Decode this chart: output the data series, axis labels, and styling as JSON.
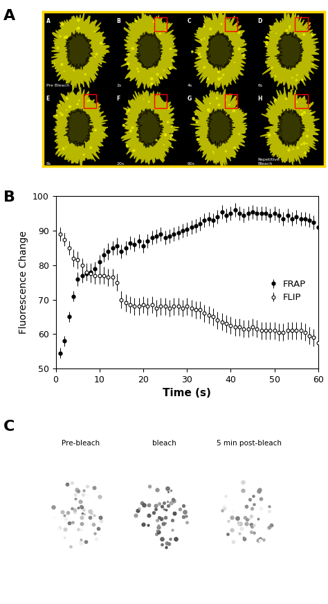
{
  "panel_B": {
    "xlabel": "Time (s)",
    "ylabel": "Fluorescence Change",
    "xlim": [
      0,
      60
    ],
    "ylim": [
      50,
      100
    ],
    "xticks": [
      0,
      10,
      20,
      30,
      40,
      50,
      60
    ],
    "yticks": [
      50,
      60,
      70,
      80,
      90,
      100
    ],
    "legend_frap": "FRAP",
    "legend_flip": "FLIP",
    "frap_x": [
      1,
      2,
      3,
      4,
      5,
      6,
      7,
      8,
      9,
      10,
      11,
      12,
      13,
      14,
      15,
      16,
      17,
      18,
      19,
      20,
      21,
      22,
      23,
      24,
      25,
      26,
      27,
      28,
      29,
      30,
      31,
      32,
      33,
      34,
      35,
      36,
      37,
      38,
      39,
      40,
      41,
      42,
      43,
      44,
      45,
      46,
      47,
      48,
      49,
      50,
      51,
      52,
      53,
      54,
      55,
      56,
      57,
      58,
      59,
      60
    ],
    "frap_y": [
      54.5,
      58.0,
      65.0,
      71.0,
      76.0,
      77.0,
      77.5,
      78.0,
      79.0,
      81.0,
      83.0,
      84.0,
      85.0,
      85.5,
      84.0,
      85.0,
      86.5,
      86.0,
      87.0,
      85.5,
      87.0,
      88.0,
      88.5,
      89.0,
      88.0,
      88.5,
      89.0,
      89.5,
      90.0,
      90.5,
      91.0,
      91.5,
      92.0,
      93.0,
      93.5,
      93.0,
      94.0,
      95.5,
      94.5,
      95.0,
      96.0,
      95.0,
      94.5,
      95.0,
      95.5,
      95.0,
      95.0,
      95.0,
      94.5,
      95.0,
      94.5,
      93.5,
      94.5,
      93.5,
      94.0,
      93.5,
      93.5,
      93.0,
      92.5,
      91.0
    ],
    "frap_yerr": [
      1.5,
      1.5,
      1.5,
      1.5,
      2.0,
      2.0,
      2.0,
      2.5,
      2.0,
      2.0,
      2.0,
      2.5,
      2.0,
      2.5,
      2.0,
      2.0,
      2.0,
      2.0,
      2.0,
      2.0,
      2.0,
      2.0,
      2.0,
      2.0,
      2.0,
      2.0,
      2.0,
      2.0,
      2.0,
      2.0,
      2.0,
      2.0,
      2.0,
      2.0,
      2.0,
      2.0,
      2.0,
      2.0,
      2.0,
      2.0,
      2.0,
      2.0,
      2.0,
      2.0,
      2.0,
      2.0,
      2.0,
      2.0,
      2.0,
      2.0,
      2.0,
      2.0,
      2.0,
      2.0,
      2.0,
      2.0,
      2.0,
      2.0,
      2.0,
      2.5
    ],
    "flip_x": [
      1,
      2,
      3,
      4,
      5,
      6,
      7,
      8,
      9,
      10,
      11,
      12,
      13,
      14,
      15,
      16,
      17,
      18,
      19,
      20,
      21,
      22,
      23,
      24,
      25,
      26,
      27,
      28,
      29,
      30,
      31,
      32,
      33,
      34,
      35,
      36,
      37,
      38,
      39,
      40,
      41,
      42,
      43,
      44,
      45,
      46,
      47,
      48,
      49,
      50,
      51,
      52,
      53,
      54,
      55,
      56,
      57,
      58,
      59,
      60
    ],
    "flip_y": [
      89.0,
      87.5,
      85.0,
      82.0,
      81.5,
      80.0,
      78.0,
      77.5,
      77.0,
      77.0,
      77.0,
      76.5,
      76.5,
      75.0,
      70.0,
      69.0,
      68.5,
      68.0,
      68.0,
      68.5,
      68.0,
      68.5,
      67.5,
      68.0,
      68.0,
      67.5,
      68.0,
      68.0,
      67.5,
      68.0,
      67.5,
      67.0,
      67.0,
      66.0,
      65.5,
      65.0,
      64.0,
      63.5,
      63.0,
      62.5,
      62.0,
      62.0,
      61.5,
      61.5,
      62.0,
      61.5,
      61.0,
      61.0,
      61.0,
      61.0,
      60.5,
      60.5,
      61.0,
      61.0,
      61.0,
      61.0,
      60.5,
      59.5,
      59.0,
      57.5
    ],
    "flip_yerr": [
      2.0,
      2.0,
      2.0,
      2.5,
      2.5,
      2.0,
      2.5,
      2.5,
      2.5,
      2.5,
      2.5,
      2.5,
      2.5,
      2.5,
      2.5,
      2.5,
      2.5,
      2.5,
      2.5,
      2.5,
      2.5,
      2.5,
      2.5,
      2.5,
      2.5,
      2.5,
      2.5,
      2.5,
      2.5,
      2.5,
      2.5,
      2.5,
      2.5,
      2.5,
      2.5,
      2.5,
      2.5,
      2.5,
      2.5,
      2.5,
      2.5,
      2.5,
      2.5,
      2.5,
      2.5,
      2.5,
      2.5,
      2.5,
      2.5,
      2.5,
      2.5,
      2.5,
      2.5,
      2.5,
      2.5,
      2.5,
      2.5,
      2.5,
      2.5,
      3.5
    ]
  },
  "panel_A": {
    "labels_top": [
      "A",
      "B",
      "C",
      "D"
    ],
    "labels_bot": [
      "E",
      "F",
      "G",
      "H"
    ],
    "times_top": [
      "Pre Bleach",
      "2s",
      "4s",
      "6s"
    ],
    "times_bot": [
      "8s",
      "20s",
      "60s",
      "Repetitive\nBleach"
    ],
    "nucleus_color": "#b8b800",
    "spot_color": "#e8e800",
    "red_box_panels": [
      "B",
      "C",
      "D",
      "E",
      "F",
      "G",
      "H"
    ],
    "border_color": "#FFD700"
  },
  "panel_C": {
    "labels": [
      "Pre-bleach",
      "bleach",
      "5 min post-bleach"
    ]
  },
  "label_fontsize": 16,
  "axis_fontsize": 10,
  "tick_fontsize": 9,
  "background_color": "#ffffff"
}
